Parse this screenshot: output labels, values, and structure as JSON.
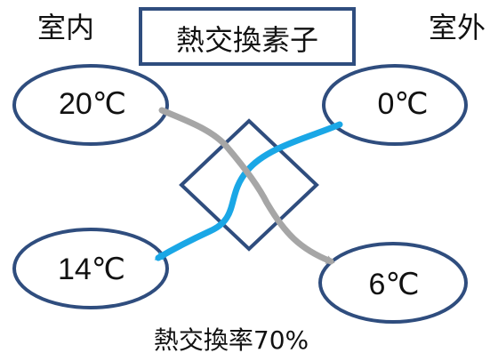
{
  "labels": {
    "indoor": "室内",
    "outdoor": "室外",
    "element": "熱交換素子",
    "efficiency": "熱交換率70%"
  },
  "temperatures": {
    "indoor_in": "20℃",
    "outdoor_in": "0℃",
    "indoor_out": "14℃",
    "outdoor_out": "6℃"
  },
  "colors": {
    "ellipse_stroke": "#2f4d7e",
    "diamond_stroke": "#2f4d7e",
    "box_stroke": "#2f4d7e",
    "outdoor_air_arrow": "#1aa7e6",
    "indoor_air_arrow": "#a6a6a6"
  }
}
